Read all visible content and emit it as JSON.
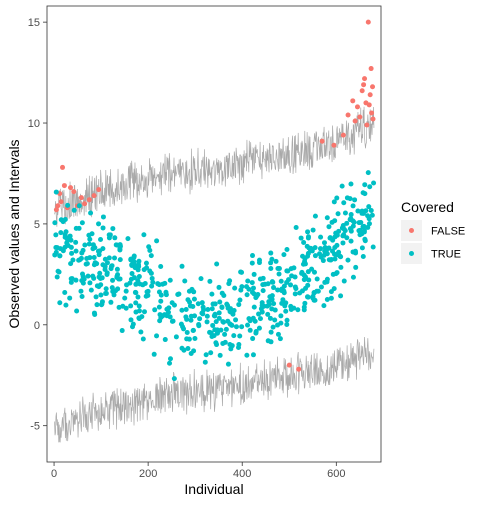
{
  "chart_data": {
    "type": "scatter",
    "xlabel": "Individual",
    "ylabel": "Observed values and Intervals",
    "xlim": [
      -15,
      695
    ],
    "ylim": [
      -6.8,
      15.8
    ],
    "x_ticks": [
      0,
      200,
      400,
      600
    ],
    "y_ticks": [
      -5,
      0,
      5,
      10,
      15
    ],
    "grid": false,
    "n_individuals": 680,
    "interval_color": "#a9a9a9",
    "legend": {
      "title": "Covered",
      "position": "right",
      "entries": [
        {
          "label": "FALSE",
          "color": "#f8766d"
        },
        {
          "label": "TRUE",
          "color": "#00bfc4"
        }
      ]
    },
    "interval_bands": {
      "x": [
        0,
        100,
        200,
        300,
        400,
        500,
        600,
        680
      ],
      "upper": [
        5.8,
        6.6,
        7.2,
        7.6,
        8.0,
        8.4,
        9.0,
        10.0
      ],
      "lower": [
        -5.2,
        -4.3,
        -3.7,
        -3.3,
        -3.0,
        -2.6,
        -2.0,
        -1.3
      ]
    },
    "series": [
      {
        "name": "FALSE",
        "color": "#f8766d",
        "points": [
          [
            5,
            5.7
          ],
          [
            8,
            5.9
          ],
          [
            12,
            6.5
          ],
          [
            15,
            6.1
          ],
          [
            18,
            7.8
          ],
          [
            22,
            6.9
          ],
          [
            28,
            5.8
          ],
          [
            35,
            6.8
          ],
          [
            42,
            6.6
          ],
          [
            50,
            5.9
          ],
          [
            58,
            6.3
          ],
          [
            65,
            6.0
          ],
          [
            75,
            6.2
          ],
          [
            85,
            6.4
          ],
          [
            95,
            6.7
          ],
          [
            500,
            -2.0
          ],
          [
            520,
            -2.2
          ],
          [
            570,
            9.1
          ],
          [
            595,
            8.9
          ],
          [
            615,
            9.4
          ],
          [
            625,
            10.4
          ],
          [
            635,
            11.1
          ],
          [
            640,
            10.1
          ],
          [
            645,
            10.8
          ],
          [
            650,
            10.3
          ],
          [
            655,
            11.6
          ],
          [
            658,
            11.9
          ],
          [
            660,
            12.2
          ],
          [
            663,
            11.0
          ],
          [
            665,
            9.9
          ],
          [
            668,
            15.0
          ],
          [
            670,
            10.9
          ],
          [
            672,
            11.4
          ],
          [
            674,
            12.7
          ],
          [
            675,
            10.5
          ],
          [
            677,
            11.8
          ],
          [
            678,
            10.2
          ]
        ]
      },
      {
        "name": "TRUE",
        "color": "#00bfc4",
        "n": 643,
        "seed": 17,
        "center_curve": {
          "x": [
            0,
            100,
            200,
            300,
            400,
            500,
            600,
            680
          ],
          "y": [
            4.0,
            2.8,
            1.5,
            0.3,
            0.7,
            1.7,
            4.0,
            6.0
          ]
        },
        "spread": 1.7
      }
    ]
  }
}
